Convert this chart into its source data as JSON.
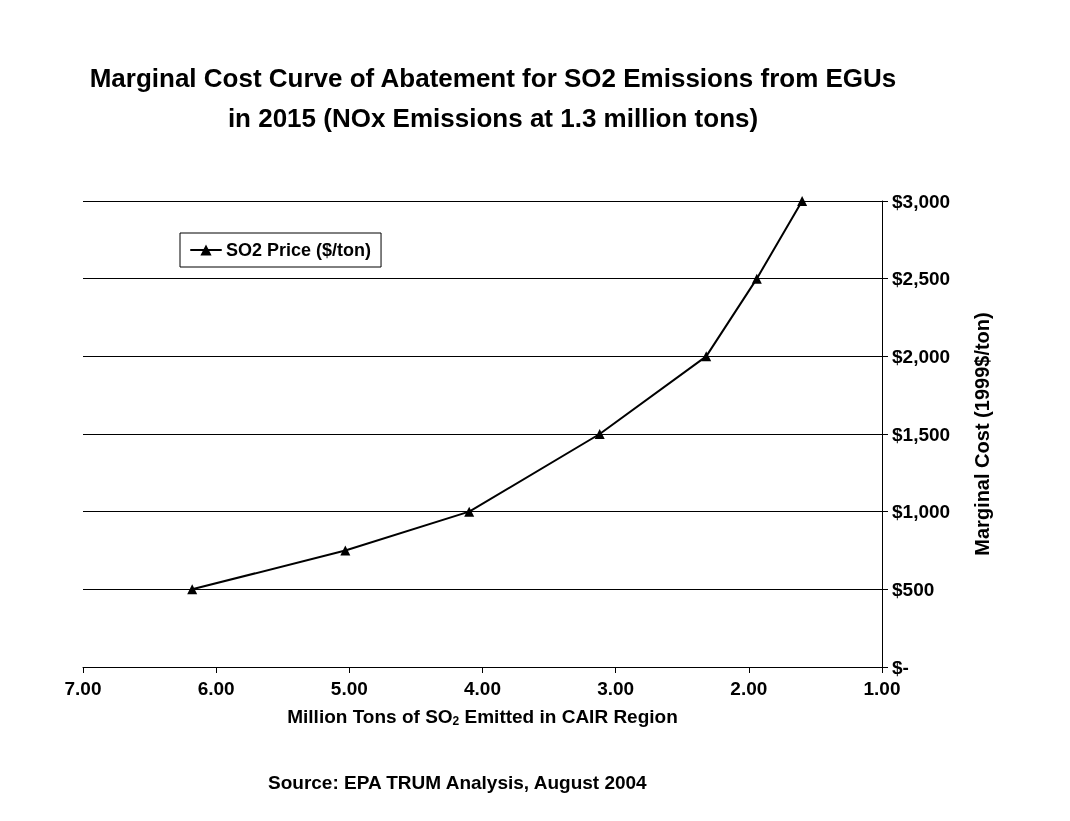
{
  "chart_data": {
    "type": "line",
    "title": "Marginal Cost Curve of Abatement for SO2 Emissions from EGUs\nin 2015 (NOx Emissions at 1.3 million tons)",
    "xlabel": "Million Tons of SO$_{2}$ Emitted in CAIR Region",
    "ylabel": "Marginal Cost (1999$/ton)",
    "annotations": [
      "Source: EPA TRUM Analysis, August 2004"
    ],
    "series": [
      {
        "name": "SO2 Price ($/ton)",
        "color": "#000000",
        "x": [
          6.18,
          5.03,
          4.1,
          3.12,
          2.32,
          1.94,
          1.6
        ],
        "values": [
          500,
          750,
          1000,
          1500,
          2000,
          2500,
          3000
        ]
      }
    ],
    "xlim": [
      7,
      1
    ],
    "xticks": [
      {
        "value": 7,
        "label": "7.00"
      },
      {
        "value": 6,
        "label": "6.00"
      },
      {
        "value": 5,
        "label": "5.00"
      },
      {
        "value": 4,
        "label": "4.00"
      },
      {
        "value": 3,
        "label": "3.00"
      },
      {
        "value": 2,
        "label": "2.00"
      },
      {
        "value": 1,
        "label": "1.00"
      }
    ],
    "ylim": [
      0,
      3000
    ],
    "yticks": [
      {
        "value": 0,
        "label": "$-"
      },
      {
        "value": 500,
        "label": "$500"
      },
      {
        "value": 1000,
        "label": "$1,000"
      },
      {
        "value": 1500,
        "label": "$1,500"
      },
      {
        "value": 2000,
        "label": "$2,000"
      },
      {
        "value": 2500,
        "label": "$2,500"
      },
      {
        "value": 3000,
        "label": "$3,000"
      }
    ],
    "grid": "y",
    "legend": "top left",
    "marker": "triangle",
    "line_style": "solid"
  }
}
